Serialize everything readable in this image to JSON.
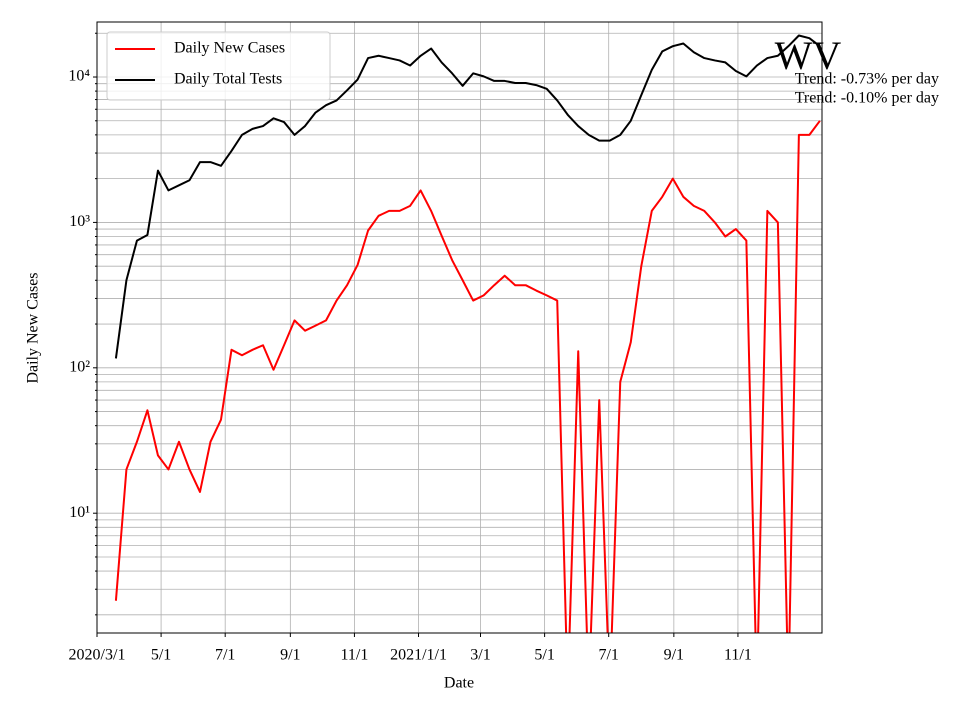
{
  "chart_data": {
    "type": "line",
    "xlabel": "Date",
    "ylabel": "Daily New Cases",
    "annotations": [
      "WV",
      "Trend: -0.73% per day",
      "Trend: -0.10% per day"
    ],
    "x": [
      "2020-03-19",
      "2020-03-29",
      "2020-04-08",
      "2020-04-18",
      "2020-04-28",
      "2020-05-08",
      "2020-05-18",
      "2020-05-28",
      "2020-06-07",
      "2020-06-17",
      "2020-06-27",
      "2020-07-07",
      "2020-07-17",
      "2020-07-27",
      "2020-08-06",
      "2020-08-16",
      "2020-08-26",
      "2020-09-05",
      "2020-09-15",
      "2020-09-25",
      "2020-10-05",
      "2020-10-15",
      "2020-10-25",
      "2020-11-04",
      "2020-11-14",
      "2020-11-24",
      "2020-12-04",
      "2020-12-14",
      "2020-12-24",
      "2021-01-03",
      "2021-01-13",
      "2021-01-23",
      "2021-02-02",
      "2021-02-12",
      "2021-02-22",
      "2021-03-04",
      "2021-03-14",
      "2021-03-24",
      "2021-04-03",
      "2021-04-13",
      "2021-04-23",
      "2021-05-03",
      "2021-05-13",
      "2021-05-23",
      "2021-06-02",
      "2021-06-12",
      "2021-06-22",
      "2021-07-02",
      "2021-07-12",
      "2021-07-22",
      "2021-08-01",
      "2021-08-11",
      "2021-08-21",
      "2021-08-31",
      "2021-09-10",
      "2021-09-20",
      "2021-09-30",
      "2021-10-10",
      "2021-10-20",
      "2021-10-30",
      "2021-11-09",
      "2021-11-19",
      "2021-11-29",
      "2021-12-09",
      "2021-12-19",
      "2021-12-29",
      "2022-01-08",
      "2022-01-18"
    ],
    "series": [
      {
        "name": "Daily New Cases",
        "color": "#ff0000",
        "values": [
          2.5,
          20,
          31,
          51,
          25,
          20,
          31,
          20,
          14,
          31,
          44,
          133,
          122,
          133,
          143,
          97,
          143,
          212,
          180,
          195,
          212,
          290,
          370,
          510,
          880,
          1110,
          1200,
          1200,
          1300,
          1660,
          1200,
          810,
          550,
          400,
          290,
          315,
          370,
          430,
          370,
          370,
          340,
          315,
          290,
          0,
          130,
          0,
          60,
          0,
          80,
          150,
          500,
          1200,
          1500,
          2000,
          1500,
          1300,
          1200,
          1000,
          800,
          900,
          750,
          0,
          1200,
          1000,
          0,
          4000,
          4000,
          5000
        ]
      },
      {
        "name": "Daily Total Tests",
        "color": "#000000",
        "values": [
          116,
          400,
          750,
          820,
          2270,
          1660,
          1800,
          1950,
          2600,
          2600,
          2450,
          3100,
          4000,
          4400,
          4600,
          5200,
          4900,
          4000,
          4600,
          5700,
          6400,
          6900,
          8100,
          9600,
          13500,
          14000,
          13500,
          13000,
          12000,
          14000,
          15700,
          12600,
          10600,
          8700,
          10600,
          10100,
          9400,
          9400,
          9100,
          9100,
          8800,
          8300,
          6900,
          5500,
          4600,
          4000,
          3650,
          3650,
          4000,
          5000,
          7500,
          11200,
          15000,
          16300,
          17000,
          14800,
          13500,
          13000,
          12600,
          11000,
          10100,
          12000,
          13500,
          14000,
          16300,
          19300,
          18500,
          16300
        ]
      }
    ],
    "xlim": [
      "2020-03-01",
      "2022-01-20"
    ],
    "xticks": [
      {
        "value": "2020-03-01",
        "label": "2020/3/1"
      },
      {
        "value": "2020-05-01",
        "label": "5/1"
      },
      {
        "value": "2020-07-01",
        "label": "7/1"
      },
      {
        "value": "2020-09-01",
        "label": "9/1"
      },
      {
        "value": "2020-11-01",
        "label": "11/1"
      },
      {
        "value": "2021-01-01",
        "label": "2021/1/1"
      },
      {
        "value": "2021-03-01",
        "label": "3/1"
      },
      {
        "value": "2021-05-01",
        "label": "5/1"
      },
      {
        "value": "2021-07-01",
        "label": "7/1"
      },
      {
        "value": "2021-09-01",
        "label": "9/1"
      },
      {
        "value": "2021-11-01",
        "label": "11/1"
      }
    ],
    "ylim": [
      1.5,
      23900
    ],
    "yscale": "log",
    "yticks": [
      {
        "value": 10,
        "label": "10¹"
      },
      {
        "value": 100,
        "label": "10²"
      },
      {
        "value": 1000,
        "label": "10³"
      },
      {
        "value": 10000,
        "label": "10⁴"
      }
    ],
    "yminorticks": [
      2,
      3,
      4,
      5,
      6,
      7,
      8,
      9,
      20,
      30,
      40,
      50,
      60,
      70,
      80,
      90,
      200,
      300,
      400,
      500,
      600,
      700,
      800,
      900,
      2000,
      3000,
      4000,
      5000,
      6000,
      7000,
      8000,
      9000,
      20000
    ],
    "grid": true,
    "legend": "upper left"
  }
}
